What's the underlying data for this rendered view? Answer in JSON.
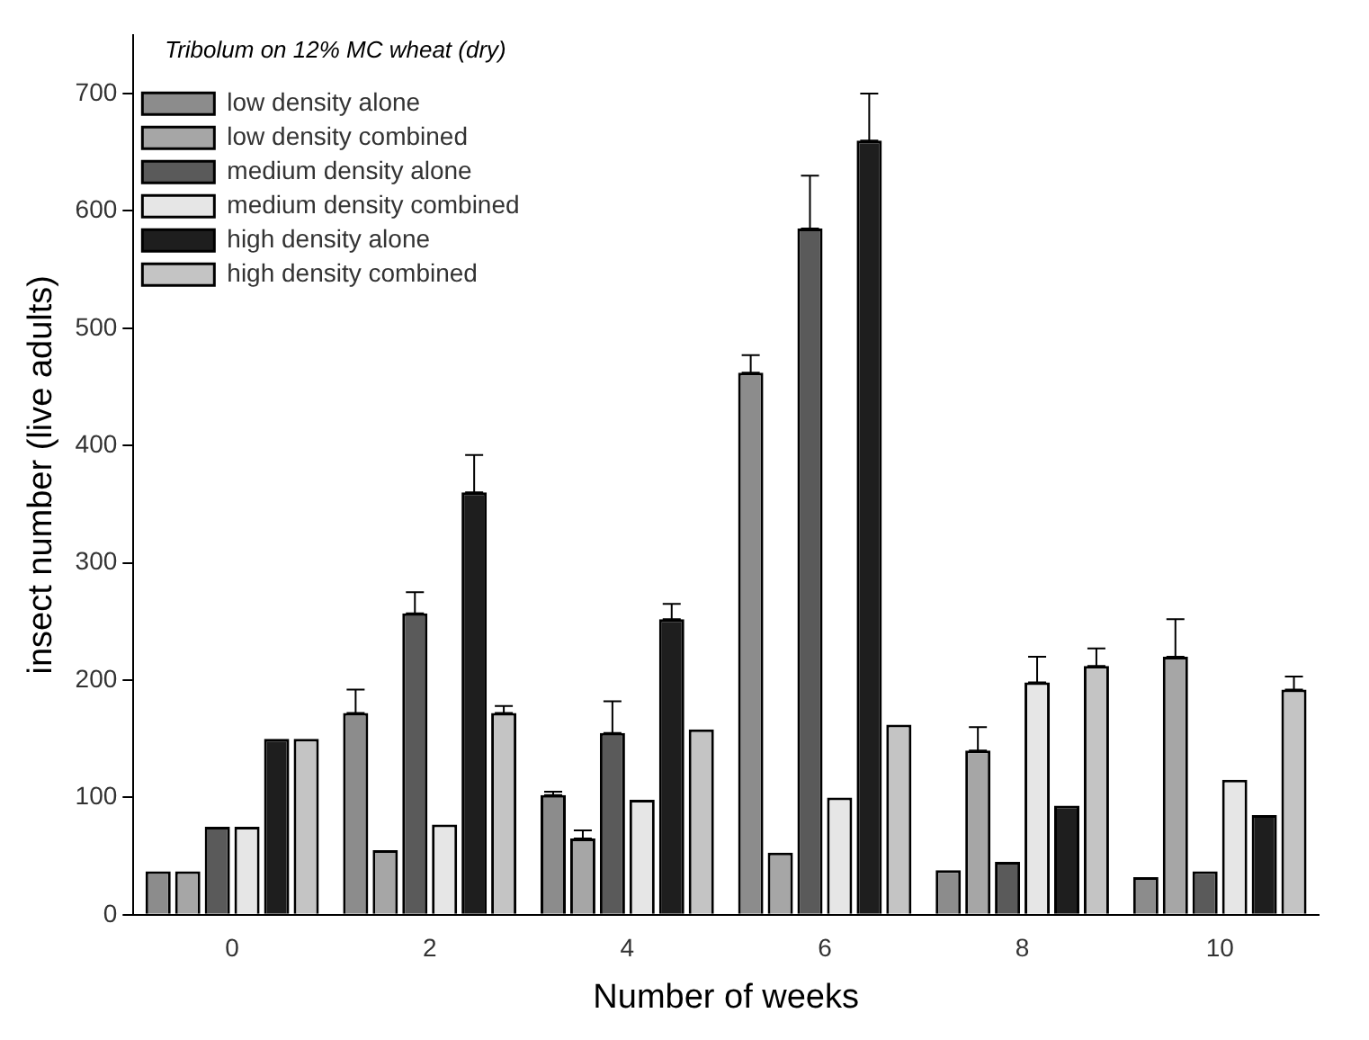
{
  "chart_data": {
    "type": "bar",
    "annotations": [
      "Tribolum on 12% MC wheat (dry)"
    ],
    "xlabel": "Number of weeks",
    "ylabel": "insect number (live adults)",
    "categories": [
      "0",
      "2",
      "4",
      "6",
      "8",
      "10"
    ],
    "series": [
      {
        "name": "low density alone",
        "color": "#8c8c8c",
        "values": [
          37,
          172,
          102,
          462,
          38,
          32
        ],
        "errors": [
          null,
          [
            172,
            192
          ],
          [
            102,
            105
          ],
          [
            462,
            477
          ],
          null,
          null
        ]
      },
      {
        "name": "low density combined",
        "color": "#a6a6a6",
        "values": [
          37,
          55,
          65,
          53,
          140,
          220
        ],
        "errors": [
          null,
          null,
          [
            65,
            72
          ],
          null,
          [
            140,
            160
          ],
          [
            220,
            252
          ]
        ]
      },
      {
        "name": "medium density alone",
        "color": "#5a5a5a",
        "values": [
          75,
          257,
          155,
          585,
          45,
          37
        ],
        "errors": [
          null,
          [
            257,
            275
          ],
          [
            155,
            182
          ],
          [
            585,
            630
          ],
          null,
          null
        ]
      },
      {
        "name": "medium density combined",
        "color": "#e6e6e6",
        "values": [
          75,
          77,
          98,
          100,
          198,
          115
        ],
        "errors": [
          null,
          null,
          null,
          null,
          [
            198,
            220
          ],
          null
        ]
      },
      {
        "name": "high density alone",
        "color": "#1e1e1e",
        "values": [
          150,
          360,
          252,
          660,
          93,
          85
        ],
        "errors": [
          null,
          [
            360,
            392
          ],
          [
            252,
            265
          ],
          [
            660,
            700
          ],
          null,
          null
        ]
      },
      {
        "name": "high density combined",
        "color": "#c4c4c4",
        "values": [
          150,
          172,
          158,
          162,
          212,
          192
        ],
        "errors": [
          null,
          [
            172,
            178
          ],
          null,
          null,
          [
            212,
            227
          ],
          [
            192,
            203
          ]
        ]
      }
    ],
    "ylim": [
      0,
      750
    ],
    "yticks": [
      0,
      100,
      200,
      300,
      400,
      500,
      600,
      700
    ],
    "grid": false,
    "legend": "top left"
  }
}
